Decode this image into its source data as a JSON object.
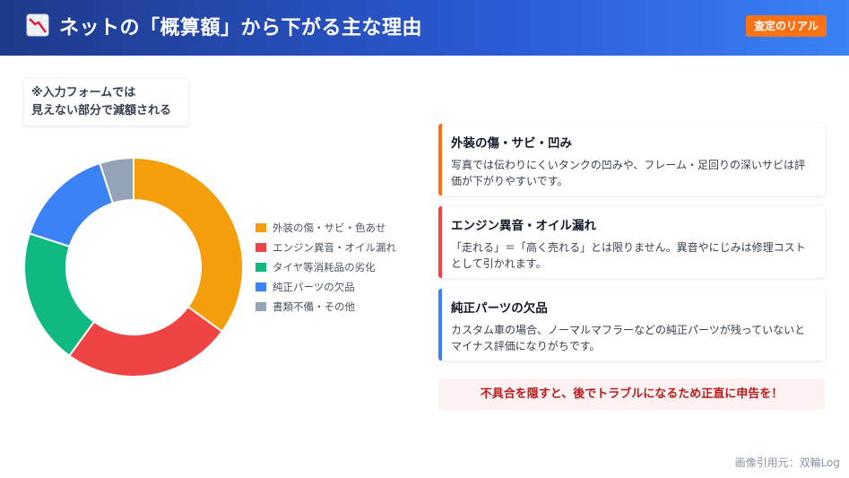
{
  "header": {
    "icon": "chart-down-icon",
    "title": "ネットの「概算額」から下がる主な理由",
    "badge": "査定のリアル",
    "colors": {
      "gradient_start": "#1e3a8a",
      "gradient_end": "#3b82f6",
      "badge": "#f97316"
    }
  },
  "note": {
    "line1": "※入力フォームでは",
    "line2": "見えない部分で減額される"
  },
  "chart_data": {
    "type": "pie",
    "categories": [
      "外装の傷・サビ・色あせ",
      "エンジン異音・オイル漏れ",
      "タイヤ等消耗品の劣化",
      "純正パーツの欠品",
      "書類不備・その他"
    ],
    "values": [
      35,
      25,
      20,
      15,
      5
    ],
    "colors": [
      "#f59e0b",
      "#ef4444",
      "#10b981",
      "#3b82f6",
      "#94a3b8"
    ],
    "donut": true,
    "legend_position": "right",
    "title": "",
    "xlabel": "",
    "ylabel": ""
  },
  "cards": [
    {
      "title": "外装の傷・サビ・凹み",
      "body": "写真では伝わりにくいタンクの凹みや、フレーム・足回りの深いサビは評価が下がりやすいです。",
      "color": "#f97316"
    },
    {
      "title": "エンジン異音・オイル漏れ",
      "body": "「走れる」＝「高く売れる」とは限りません。異音やにじみは修理コストとして引かれます。",
      "color": "#ef4444"
    },
    {
      "title": "純正パーツの欠品",
      "body": "カスタム車の場合、ノーマルマフラーなどの純正パーツが残っていないとマイナス評価になりがちです。",
      "color": "#3b82f6"
    }
  ],
  "warning": "不具合を隠すと、後でトラブルになるため正直に申告を！",
  "credit": "画像引用元：双輪Log"
}
